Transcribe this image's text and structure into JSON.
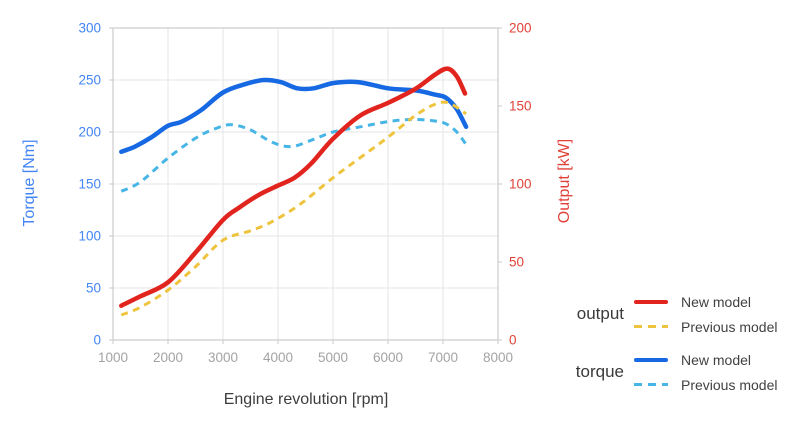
{
  "chart_data": {
    "type": "line",
    "title": "",
    "grid": true,
    "legend_position": "bottom-right-outside",
    "x_axis": {
      "label": "Engine revolution [rpm]",
      "min": 1000,
      "max": 8000,
      "ticks": [
        1000,
        2000,
        3000,
        4000,
        5000,
        6000,
        7000,
        8000
      ],
      "tick_color": "#a3a3a3"
    },
    "y_left": {
      "label": "Torque [Nm]",
      "min": 0,
      "max": 300,
      "ticks": [
        0,
        50,
        100,
        150,
        200,
        250,
        300
      ],
      "tick_color": "#4285f4"
    },
    "y_right": {
      "label": "Output [kW]",
      "min": 0,
      "max": 200,
      "ticks": [
        0,
        50,
        100,
        150,
        200
      ],
      "tick_color": "#e04238"
    },
    "series": [
      {
        "id": "output-new",
        "group": "output",
        "label": "New model",
        "axis": "right",
        "style": "solid",
        "color": "#e2241e",
        "draw_order": 4,
        "points": [
          [
            1150,
            22
          ],
          [
            1500,
            28
          ],
          [
            2000,
            37
          ],
          [
            2500,
            56
          ],
          [
            3000,
            77
          ],
          [
            3300,
            85
          ],
          [
            3650,
            93
          ],
          [
            4000,
            99
          ],
          [
            4300,
            104
          ],
          [
            4600,
            113
          ],
          [
            5000,
            129
          ],
          [
            5500,
            144
          ],
          [
            6000,
            152
          ],
          [
            6500,
            161
          ],
          [
            6850,
            170
          ],
          [
            7080,
            174
          ],
          [
            7250,
            169
          ],
          [
            7400,
            158
          ]
        ]
      },
      {
        "id": "output-prev",
        "group": "output",
        "label": "Previous model",
        "axis": "right",
        "style": "dashed",
        "color": "#eec43e",
        "draw_order": 3,
        "points": [
          [
            1150,
            16
          ],
          [
            1500,
            21
          ],
          [
            2000,
            32
          ],
          [
            2500,
            47
          ],
          [
            3000,
            64
          ],
          [
            3500,
            70
          ],
          [
            3900,
            76
          ],
          [
            4400,
            87
          ],
          [
            5000,
            104
          ],
          [
            5500,
            117
          ],
          [
            6000,
            130
          ],
          [
            6500,
            144
          ],
          [
            6850,
            151
          ],
          [
            7100,
            152
          ],
          [
            7420,
            145
          ]
        ]
      },
      {
        "id": "torque-new",
        "group": "torque",
        "label": "New model",
        "axis": "left",
        "style": "solid",
        "color": "#1668e3",
        "draw_order": 1,
        "points": [
          [
            1150,
            181
          ],
          [
            1400,
            186
          ],
          [
            1700,
            195
          ],
          [
            2000,
            206
          ],
          [
            2250,
            210
          ],
          [
            2600,
            221
          ],
          [
            3000,
            238
          ],
          [
            3400,
            246
          ],
          [
            3750,
            250
          ],
          [
            4050,
            248
          ],
          [
            4350,
            242
          ],
          [
            4650,
            242
          ],
          [
            5000,
            247
          ],
          [
            5450,
            248
          ],
          [
            6000,
            242
          ],
          [
            6500,
            240
          ],
          [
            6850,
            236
          ],
          [
            7050,
            233
          ],
          [
            7250,
            222
          ],
          [
            7420,
            205
          ]
        ]
      },
      {
        "id": "torque-prev",
        "group": "torque",
        "label": "Previous model",
        "axis": "left",
        "style": "dashed",
        "color": "#47b5e5",
        "draw_order": 2,
        "points": [
          [
            1150,
            143
          ],
          [
            1500,
            152
          ],
          [
            2000,
            175
          ],
          [
            2500,
            194
          ],
          [
            2850,
            203
          ],
          [
            3150,
            207
          ],
          [
            3500,
            202
          ],
          [
            3900,
            190
          ],
          [
            4250,
            186
          ],
          [
            4650,
            193
          ],
          [
            5000,
            200
          ],
          [
            5500,
            205
          ],
          [
            6000,
            210
          ],
          [
            6400,
            212
          ],
          [
            6800,
            211
          ],
          [
            7050,
            208
          ],
          [
            7250,
            200
          ],
          [
            7420,
            188
          ]
        ]
      }
    ],
    "colors": {
      "grid": "#e5e5e5",
      "frame": "#cccccc",
      "tick_mark": "#c9c9c9"
    }
  },
  "legend": {
    "groups": [
      {
        "label": "output"
      },
      {
        "label": "torque"
      }
    ]
  }
}
